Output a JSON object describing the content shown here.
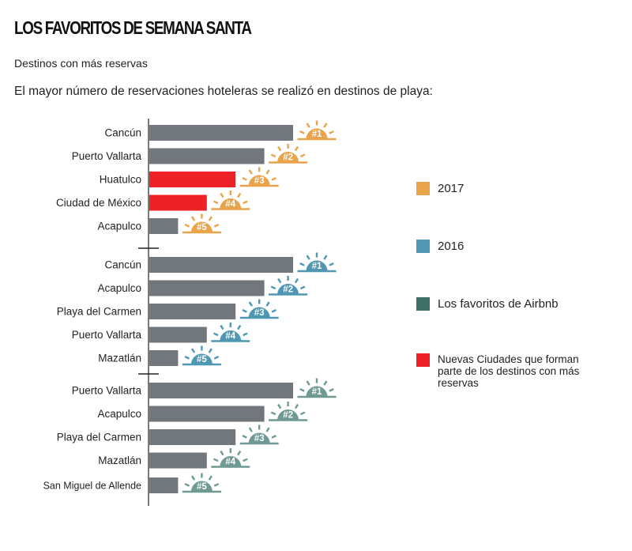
{
  "header": {
    "title": "LOS FAVORITOS DE SEMANA SANTA",
    "subtitle": "Destinos con más reservas",
    "intro": "El mayor número de reservaciones hoteleras se realizó en destinos de playa:"
  },
  "chart_data": {
    "type": "bar",
    "orientation": "horizontal",
    "value_note": "bar lengths are relative ranks (no numeric axis printed); rank 1 = longest",
    "groups": [
      {
        "series": "2017",
        "color": "#E8A34B",
        "bars": [
          {
            "label": "Cancún",
            "rank": "#1",
            "value": 5,
            "new_city": false
          },
          {
            "label": "Puerto Vallarta",
            "rank": "#2",
            "value": 4,
            "new_city": false
          },
          {
            "label": "Huatulco",
            "rank": "#3",
            "value": 3,
            "new_city": true
          },
          {
            "label": "Ciudad de México",
            "rank": "#4",
            "value": 2,
            "new_city": true
          },
          {
            "label": "Acapulco",
            "rank": "#5",
            "value": 1,
            "new_city": false
          }
        ]
      },
      {
        "series": "2016",
        "color": "#4F97B2",
        "bars": [
          {
            "label": "Cancún",
            "rank": "#1",
            "value": 5,
            "new_city": false
          },
          {
            "label": "Acapulco",
            "rank": "#2",
            "value": 4,
            "new_city": false
          },
          {
            "label": "Playa del Carmen",
            "rank": "#3",
            "value": 3,
            "new_city": false
          },
          {
            "label": "Puerto Vallarta",
            "rank": "#4",
            "value": 2,
            "new_city": false
          },
          {
            "label": "Mazatlán",
            "rank": "#5",
            "value": 1,
            "new_city": false
          }
        ]
      },
      {
        "series": "Los favoritos de Airbnb",
        "color": "#6E9A93",
        "bars": [
          {
            "label": "Puerto Vallarta",
            "rank": "#1",
            "value": 5,
            "new_city": false
          },
          {
            "label": "Acapulco",
            "rank": "#2",
            "value": 4,
            "new_city": false
          },
          {
            "label": "Playa del Carmen",
            "rank": "#3",
            "value": 3,
            "new_city": false
          },
          {
            "label": "Mazatlán",
            "rank": "#4",
            "value": 2,
            "new_city": false
          },
          {
            "label": "San Miguel de Allende",
            "rank": "#5",
            "value": 1,
            "new_city": false
          }
        ]
      }
    ],
    "bar_color": "#71777C",
    "new_city_color": "#EE2127"
  },
  "legend": {
    "items": [
      {
        "label": "2017",
        "color": "#E8A34B"
      },
      {
        "label": "2016",
        "color": "#4F97B2"
      },
      {
        "label": "Los favoritos de Airbnb",
        "color": "#3F7067"
      },
      {
        "label": "Nuevas Ciudades que forman parte de los destinos con más reservas",
        "color": "#EE2127"
      }
    ]
  }
}
